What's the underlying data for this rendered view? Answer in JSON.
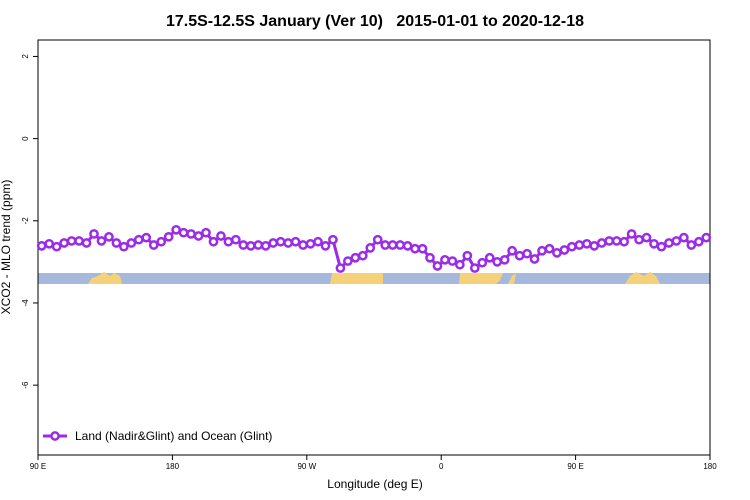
{
  "chart_data": {
    "type": "line",
    "title": "17.5S-12.5S January (Ver 10)   2015-01-01 to 2020-12-18",
    "xlabel": "Longitude (deg E)",
    "ylabel": "XCO2 - MLO trend (ppm)",
    "xlim": [
      90,
      540
    ],
    "ylim": [
      -7.7,
      2.4
    ],
    "xticks": [
      {
        "value": 90,
        "label": "90 E"
      },
      180,
      {
        "value": 270,
        "label": "90 W"
      },
      {
        "value": 360,
        "label": "0"
      },
      {
        "value": 450,
        "label": "90 E"
      },
      {
        "value": 540,
        "label": "180"
      }
    ],
    "yticks": [
      -6,
      -4,
      -2,
      0,
      2
    ],
    "legend": "lower left",
    "x": [
      92.5,
      97.5,
      102.5,
      107.5,
      112.5,
      117.5,
      122.5,
      127.5,
      132.5,
      137.5,
      142.5,
      147.5,
      152.5,
      157.5,
      162.5,
      167.5,
      172.5,
      177.5,
      182.5,
      187.5,
      192.5,
      197.5,
      202.5,
      207.5,
      212.5,
      217.5,
      222.5,
      227.5,
      232.5,
      237.5,
      242.5,
      247.5,
      252.5,
      257.5,
      262.5,
      267.5,
      272.5,
      277.5,
      282.5,
      287.5,
      292.5,
      297.5,
      302.5,
      307.5,
      312.5,
      317.5,
      322.5,
      327.5,
      332.5,
      337.5,
      342.5,
      347.5,
      352.5,
      357.5,
      362.5,
      367.5,
      372.5,
      377.5,
      382.5,
      387.5,
      392.5,
      397.5,
      402.5,
      407.5,
      412.5,
      417.5,
      422.5,
      427.5,
      432.5,
      437.5,
      442.5,
      447.5,
      452.5,
      457.5,
      462.5,
      467.5,
      472.5,
      477.5,
      482.5,
      487.5,
      492.5,
      497.5,
      502.5,
      507.5,
      512.5,
      517.5,
      522.5,
      527.5,
      532.5,
      537.5
    ],
    "series": [
      {
        "name": "Land (Nadir&Glint) and Ocean (Glint)",
        "color": "#9b2be6",
        "values": [
          -2.61,
          -2.56,
          -2.63,
          -2.54,
          -2.49,
          -2.49,
          -2.54,
          -2.32,
          -2.49,
          -2.39,
          -2.54,
          -2.63,
          -2.54,
          -2.46,
          -2.41,
          -2.59,
          -2.51,
          -2.39,
          -2.22,
          -2.29,
          -2.32,
          -2.37,
          -2.29,
          -2.51,
          -2.37,
          -2.51,
          -2.46,
          -2.59,
          -2.61,
          -2.59,
          -2.61,
          -2.54,
          -2.51,
          -2.54,
          -2.51,
          -2.59,
          -2.56,
          -2.51,
          -2.61,
          -2.46,
          -3.15,
          -2.98,
          -2.9,
          -2.85,
          -2.66,
          -2.46,
          -2.59,
          -2.59,
          -2.59,
          -2.61,
          -2.68,
          -2.68,
          -2.9,
          -3.1,
          -2.95,
          -2.98,
          -3.07,
          -2.85,
          -3.15,
          -3.02,
          -2.9,
          -3.0,
          -2.95,
          -2.73,
          -2.85,
          -2.8,
          -2.93,
          -2.73,
          -2.68,
          -2.78,
          -2.71,
          -2.63,
          -2.59,
          -2.56,
          -2.61,
          -2.54,
          -2.49,
          -2.49,
          -2.51,
          -2.32,
          -2.46,
          -2.41,
          -2.56,
          -2.63,
          -2.54,
          -2.49,
          -2.41,
          -2.59,
          -2.51,
          -2.41
        ]
      }
    ]
  }
}
